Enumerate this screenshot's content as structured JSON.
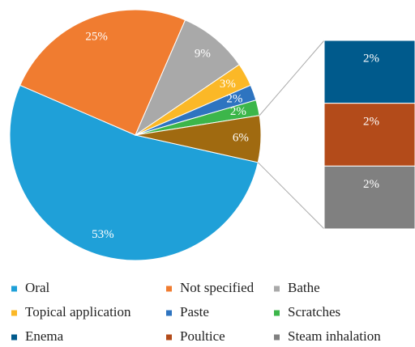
{
  "chart_data": {
    "type": "pie-of-bar",
    "pie": {
      "categories": [
        "Oral",
        "Not specified",
        "Bathe",
        "Topical application",
        "Paste",
        "Scratches",
        null
      ],
      "values": [
        53,
        25,
        9,
        3,
        2,
        2,
        6
      ],
      "value_labels": [
        "53%",
        "25%",
        "9%",
        "3%",
        "2%",
        "2%",
        "6%"
      ],
      "colors": [
        "#1fa0d8",
        "#f07c30",
        "#a9a9a9",
        "#fbb827",
        "#2e74c0",
        "#3cb64a",
        "#a06a10"
      ]
    },
    "bar": {
      "categories": [
        "Enema",
        "Poultice",
        "Steam inhalation"
      ],
      "values": [
        2,
        2,
        2
      ],
      "value_labels": [
        "2%",
        "2%",
        "2%"
      ],
      "colors": [
        "#005a8c",
        "#b34b1a",
        "#808080"
      ]
    }
  }
}
